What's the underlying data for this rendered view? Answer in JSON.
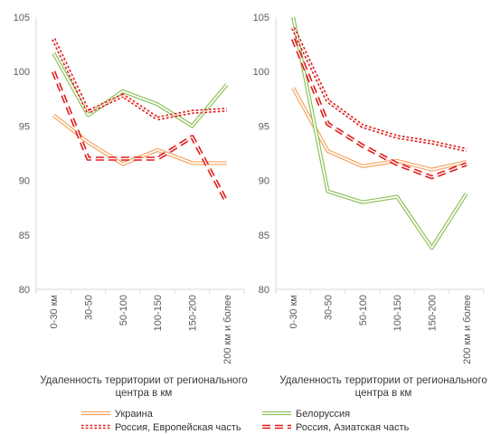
{
  "chart_data": [
    {
      "type": "line",
      "categories": [
        "0-30 км",
        "30-50",
        "50-100",
        "100-150",
        "150-200",
        "200 км и более"
      ],
      "ylim": [
        80,
        105
      ],
      "yticks": [
        "80",
        "85",
        "90",
        "95",
        "100",
        "105"
      ],
      "xlabel": [
        "Удаленность территории от регионального",
        "центра в км"
      ],
      "grid": false,
      "series": [
        {
          "name": "Украина",
          "color": "#F4A460",
          "style": "solid",
          "values": [
            96.0,
            93.5,
            91.5,
            92.8,
            91.6,
            91.6
          ]
        },
        {
          "name": "Белоруссия",
          "color": "#8DC25A",
          "style": "solid",
          "values": [
            101.7,
            96.0,
            98.2,
            97.0,
            95.0,
            98.8
          ]
        },
        {
          "name": "Россия, Европейская часть",
          "color": "#E01B1B",
          "style": "dotted",
          "values": [
            103.0,
            96.3,
            97.8,
            95.7,
            96.3,
            96.5
          ]
        },
        {
          "name": "Россия, Азиатская часть",
          "color": "#E01B1B",
          "style": "dashed",
          "values": [
            100.0,
            92.0,
            92.0,
            92.0,
            94.0,
            88.0
          ]
        }
      ]
    },
    {
      "type": "line",
      "categories": [
        "0-30 км",
        "30-50",
        "50-100",
        "100-150",
        "150-200",
        "200 км и более"
      ],
      "ylim": [
        80,
        105
      ],
      "yticks": [
        "80",
        "85",
        "90",
        "95",
        "100",
        "105"
      ],
      "xlabel": [
        "Удаленность территории от регионального",
        "центра в км"
      ],
      "grid": false,
      "series": [
        {
          "name": "Украина",
          "color": "#F4A460",
          "style": "solid",
          "values": [
            98.5,
            92.7,
            91.3,
            91.8,
            91.0,
            91.7
          ]
        },
        {
          "name": "Белоруссия",
          "color": "#8DC25A",
          "style": "solid",
          "values": [
            105.0,
            89.0,
            88.0,
            88.5,
            83.8,
            88.8
          ]
        },
        {
          "name": "Россия, Европейская часть",
          "color": "#E01B1B",
          "style": "dotted",
          "values": [
            104.0,
            97.3,
            95.0,
            94.0,
            93.5,
            92.8
          ]
        },
        {
          "name": "Россия, Азиатская часть",
          "color": "#E01B1B",
          "style": "dashed",
          "values": [
            103.0,
            95.2,
            93.2,
            91.5,
            90.3,
            91.5
          ]
        }
      ]
    }
  ],
  "legend": {
    "placement": "bottom",
    "items": [
      {
        "label": "Украина",
        "color": "#F4A460",
        "style": "solid"
      },
      {
        "label": "Белоруссия",
        "color": "#8DC25A",
        "style": "solid"
      },
      {
        "label": "Россия, Европейская часть",
        "color": "#E01B1B",
        "style": "dotted"
      },
      {
        "label": "Россия, Азиатская часть",
        "color": "#E01B1B",
        "style": "dashed"
      }
    ]
  }
}
